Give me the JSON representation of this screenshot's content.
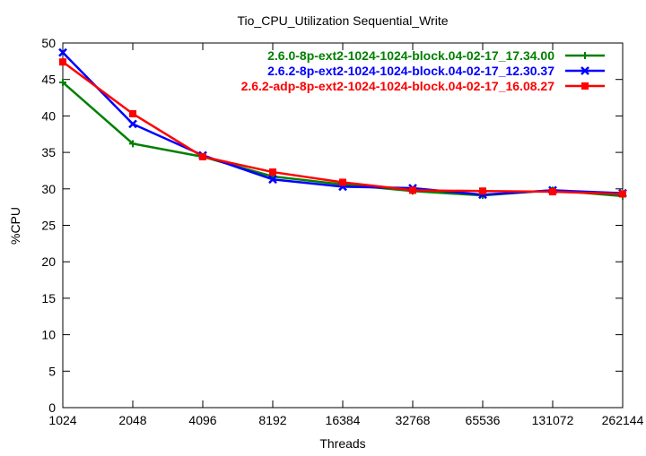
{
  "chart_data": {
    "type": "line",
    "title": "Tio_CPU_Utilization Sequential_Write",
    "xlabel": "Threads",
    "ylabel": "%CPU",
    "x_scale": "log2",
    "x": [
      1024,
      2048,
      4096,
      8192,
      16384,
      32768,
      65536,
      131072,
      262144
    ],
    "x_tick_labels": [
      "1024",
      "2048",
      "4096",
      "8192",
      "16384",
      "32768",
      "65536",
      "131072",
      "262144"
    ],
    "ylim": [
      0,
      50
    ],
    "y_ticks": [
      0,
      5,
      10,
      15,
      20,
      25,
      30,
      35,
      40,
      45,
      50
    ],
    "grid": false,
    "legend_placement": "top-right",
    "series": [
      {
        "name": "2.6.0-8p-ext2-1024-1024-block.04-02-17_17.34.00",
        "color": "#008000",
        "marker": "plus",
        "values": [
          44.6,
          36.2,
          34.4,
          31.7,
          30.6,
          29.7,
          29.1,
          29.8,
          29.0
        ]
      },
      {
        "name": "2.6.2-8p-ext2-1024-1024-block.04-02-17_12.30.37",
        "color": "#0000ff",
        "marker": "cross",
        "values": [
          48.7,
          38.9,
          34.6,
          31.3,
          30.3,
          30.1,
          29.2,
          29.8,
          29.4
        ]
      },
      {
        "name": "2.6.2-adp-8p-ext2-1024-1024-block.04-02-17_16.08.27",
        "color": "#ff0000",
        "marker": "filled-square",
        "values": [
          47.4,
          40.3,
          34.4,
          32.3,
          30.9,
          29.8,
          29.7,
          29.6,
          29.3
        ]
      }
    ]
  }
}
